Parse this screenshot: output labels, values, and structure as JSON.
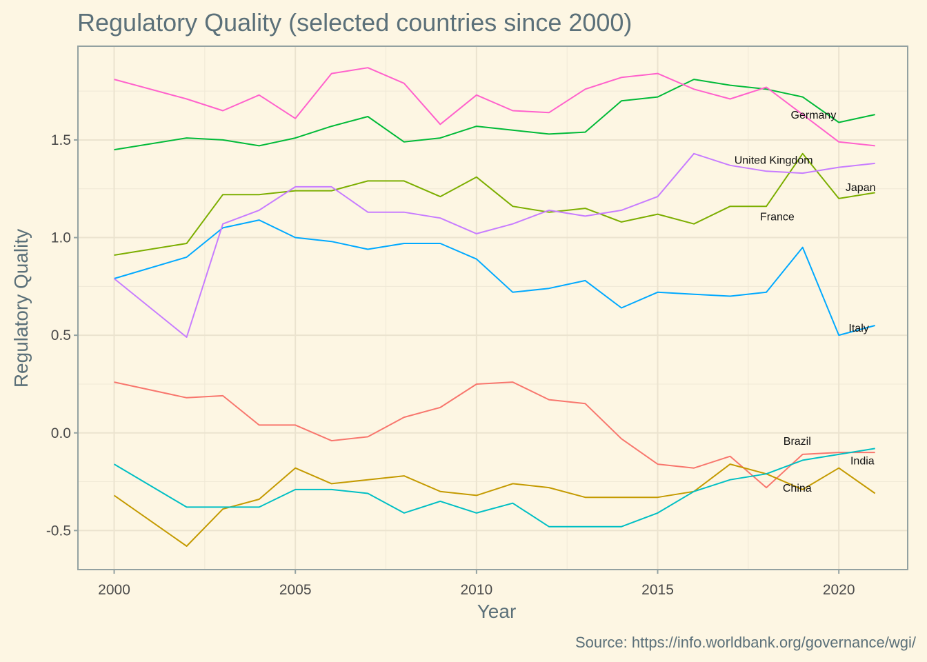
{
  "chart_data": {
    "type": "line",
    "title": "Regulatory Quality (selected countries since 2000)",
    "xlabel": "Year",
    "ylabel": "Regulatory Quality",
    "caption": "Source: https://info.worldbank.org/governance/wgi/",
    "xlim": [
      1999,
      2021.9
    ],
    "ylim": [
      -0.7,
      1.98
    ],
    "x_ticks": [
      2000,
      2005,
      2010,
      2015,
      2020
    ],
    "y_ticks": [
      -0.5,
      0.0,
      0.5,
      1.0,
      1.5
    ],
    "y_tick_labels": [
      "-0.5",
      "0.0",
      "0.5",
      "1.0",
      "1.5"
    ],
    "grid": true,
    "legend": "none (direct labels)",
    "x": [
      2000,
      2002,
      2003,
      2004,
      2005,
      2006,
      2007,
      2008,
      2009,
      2010,
      2011,
      2012,
      2013,
      2014,
      2015,
      2016,
      2017,
      2018,
      2019,
      2020,
      2021
    ],
    "series": [
      {
        "name": "Brazil",
        "color": "#f8766d",
        "values": [
          0.26,
          0.18,
          0.19,
          0.04,
          0.04,
          -0.04,
          -0.02,
          0.08,
          0.13,
          0.25,
          0.26,
          0.17,
          0.15,
          -0.03,
          -0.16,
          -0.18,
          -0.12,
          -0.28,
          -0.11,
          -0.1,
          -0.1
        ]
      },
      {
        "name": "China",
        "color": "#c49a00",
        "values": [
          -0.32,
          -0.58,
          -0.39,
          -0.34,
          -0.18,
          -0.26,
          -0.24,
          -0.22,
          -0.3,
          -0.32,
          -0.26,
          -0.28,
          -0.33,
          -0.33,
          -0.33,
          -0.3,
          -0.16,
          -0.21,
          -0.29,
          -0.18,
          -0.31
        ]
      },
      {
        "name": "France",
        "color": "#7cae00",
        "values": [
          0.91,
          0.97,
          1.22,
          1.22,
          1.24,
          1.24,
          1.29,
          1.29,
          1.21,
          1.31,
          1.16,
          1.13,
          1.15,
          1.08,
          1.12,
          1.07,
          1.16,
          1.16,
          1.43,
          1.2,
          1.23
        ]
      },
      {
        "name": "Germany",
        "color": "#00ba38",
        "values": [
          1.45,
          1.51,
          1.5,
          1.47,
          1.51,
          1.57,
          1.62,
          1.49,
          1.51,
          1.57,
          1.55,
          1.53,
          1.54,
          1.7,
          1.72,
          1.81,
          1.78,
          1.76,
          1.72,
          1.59,
          1.63
        ]
      },
      {
        "name": "India",
        "color": "#00bfc4",
        "values": [
          -0.16,
          -0.38,
          -0.38,
          -0.38,
          -0.29,
          -0.29,
          -0.31,
          -0.41,
          -0.35,
          -0.41,
          -0.36,
          -0.48,
          -0.48,
          -0.48,
          -0.41,
          -0.3,
          -0.24,
          -0.21,
          -0.14,
          -0.11,
          -0.08
        ]
      },
      {
        "name": "Italy",
        "color": "#00a9ff",
        "values": [
          0.79,
          0.9,
          1.05,
          1.09,
          1.0,
          0.98,
          0.94,
          0.97,
          0.97,
          0.89,
          0.72,
          0.74,
          0.78,
          0.64,
          0.72,
          0.71,
          0.7,
          0.72,
          0.95,
          0.5,
          0.55
        ]
      },
      {
        "name": "United Kingdom",
        "color": "#c77cff",
        "values": [
          0.79,
          0.49,
          1.07,
          1.14,
          1.26,
          1.26,
          1.13,
          1.13,
          1.1,
          1.02,
          1.07,
          1.14,
          1.11,
          1.14,
          1.21,
          1.43,
          1.37,
          1.34,
          1.33,
          1.36,
          1.38
        ]
      },
      {
        "name": "Japan",
        "color": "#ff61cc",
        "values": [
          1.81,
          1.71,
          1.65,
          1.73,
          1.61,
          1.84,
          1.87,
          1.79,
          1.58,
          1.73,
          1.65,
          1.64,
          1.76,
          1.82,
          1.84,
          1.76,
          1.71,
          1.77,
          1.63,
          1.49,
          1.47
        ]
      }
    ]
  }
}
